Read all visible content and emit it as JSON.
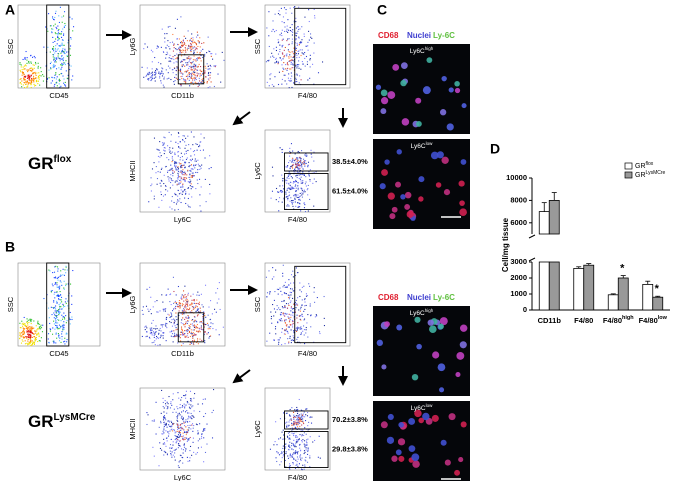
{
  "panel_labels": [
    "A",
    "B",
    "C",
    "D"
  ],
  "flow": [
    {
      "genotype": {
        "text": "GR",
        "sup": "flox"
      },
      "plots": [
        {
          "x_label": "CD45",
          "y_label": "SSC"
        },
        {
          "x_label": "CD11b",
          "y_label": "Ly6G"
        },
        {
          "x_label": "F4/80",
          "y_label": "SSC"
        },
        {
          "x_label": "Ly6C",
          "y_label": "MHCII"
        },
        {
          "x_label": "F4/80",
          "y_label": "Ly6C"
        }
      ],
      "gate_labels": [
        "38.5±4.0%",
        "61.5±4.0%"
      ]
    },
    {
      "genotype": {
        "text": "GR",
        "sup": "LysMCre"
      },
      "plots": [
        {
          "x_label": "CD45",
          "y_label": "SSC"
        },
        {
          "x_label": "CD11b",
          "y_label": "Ly6G"
        },
        {
          "x_label": "F4/80",
          "y_label": "SSC"
        },
        {
          "x_label": "Ly6C",
          "y_label": "MHCII"
        },
        {
          "x_label": "F4/80",
          "y_label": "Ly6C"
        }
      ],
      "gate_labels": [
        "70.2±3.8%",
        "29.8±3.8%"
      ]
    }
  ],
  "microscopy": [
    {
      "stains": [
        "CD68",
        "Nuclei",
        "Ly-6C"
      ],
      "images": [
        {
          "text": "Ly6C",
          "sup": "high"
        },
        {
          "text": "Ly6C",
          "sup": "low"
        }
      ]
    },
    {
      "stains": [
        "CD68",
        "Nuclei",
        "Ly-6C"
      ],
      "images": [
        {
          "text": "Ly6C",
          "sup": "high"
        },
        {
          "text": "Ly6C",
          "sup": "low"
        }
      ]
    }
  ],
  "chart_data": {
    "type": "bar",
    "y_label": "Cell/mg tissue",
    "categories": [
      "CD11b",
      "F4/80",
      "F4/80",
      "F4/80"
    ],
    "category_sups": [
      null,
      null,
      "high",
      "low"
    ],
    "series": [
      {
        "name": "GR",
        "name_sup": "flox",
        "color": "#ffffff",
        "values": [
          7000,
          2600,
          950,
          1600
        ],
        "errors": [
          800,
          100,
          60,
          200
        ]
      },
      {
        "name": "GR",
        "name_sup": "LysMCre",
        "color": "#999999",
        "values": [
          8000,
          2800,
          2000,
          800
        ],
        "errors": [
          700,
          100,
          150,
          60
        ]
      }
    ],
    "ylim": [
      0,
      10000
    ],
    "ybreak": [
      3000,
      5000
    ],
    "yticks": [
      0,
      1000,
      2000,
      3000,
      6000,
      8000,
      10000
    ],
    "annotations": [
      {
        "text": "*",
        "category": 2
      },
      {
        "text": "*",
        "category": 3
      }
    ]
  }
}
